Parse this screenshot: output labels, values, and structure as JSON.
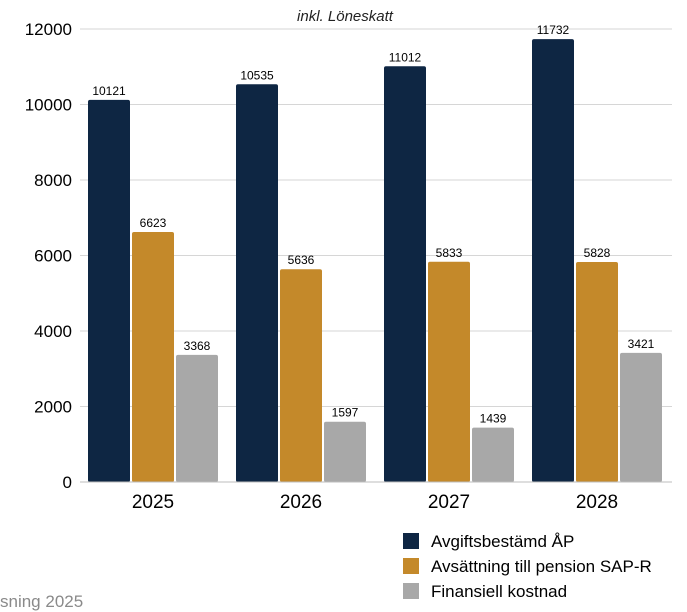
{
  "footer_text": "sning 2025",
  "chart_data": {
    "type": "bar",
    "title": "inkl. Löneskatt",
    "xlabel": "",
    "ylabel": "",
    "categories": [
      "2025",
      "2026",
      "2027",
      "2028"
    ],
    "ylim": [
      0,
      12000
    ],
    "yticks": [
      0,
      2000,
      4000,
      6000,
      8000,
      10000,
      12000
    ],
    "grid": true,
    "legend_position": "bottom-right",
    "series": [
      {
        "name": "Avgiftsbestämd ÅP",
        "color": "#0e2643",
        "values": [
          10121,
          10535,
          11012,
          11732
        ]
      },
      {
        "name": "Avsättning till pension SAP-R",
        "color": "#c4892a",
        "values": [
          6623,
          5636,
          5833,
          5828
        ]
      },
      {
        "name": "Finansiell kostnad",
        "color": "#a8a8a8",
        "values": [
          3368,
          1597,
          1439,
          3421
        ]
      }
    ]
  }
}
